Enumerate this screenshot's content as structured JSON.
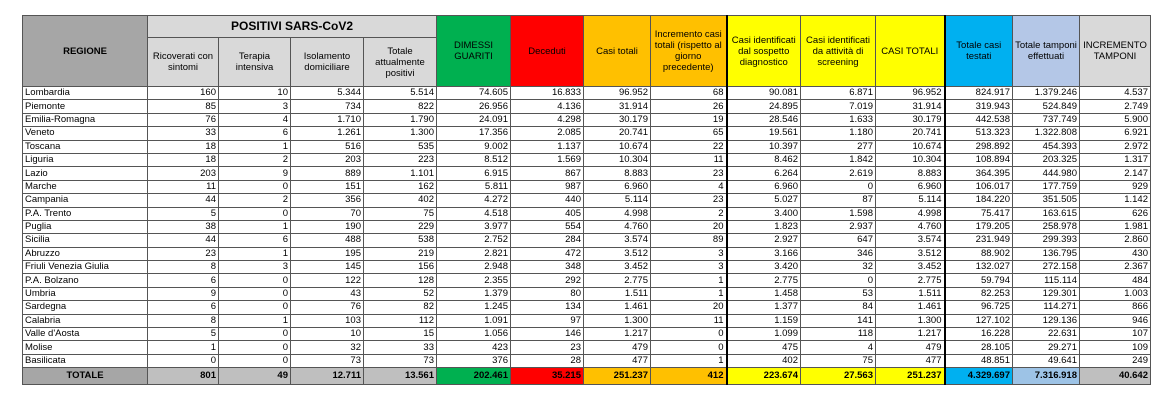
{
  "header": {
    "regione": "REGIONE",
    "positivi_group": "POSITIVI SARS-CoV2",
    "columns": [
      "Ricoverati con sintomi",
      "Terapia intensiva",
      "Isolamento domiciliare",
      "Totale attualmente positivi",
      "DIMESSI GUARITI",
      "Deceduti",
      "Casi totali",
      "Incremento casi totali (rispetto al giorno precedente)",
      "Casi identificati dal sospetto diagnostico",
      "Casi identificati da attività di screening",
      "CASI TOTALI",
      "Totale casi testati",
      "Totale tamponi effettuati",
      "INCREMENTO TAMPONI"
    ]
  },
  "colors": {
    "header_grey": "#d9d9d9",
    "regione_grey": "#a6a6a6",
    "dimessi": "#00b050",
    "deceduti": "#ff0000",
    "casi_totali": "#ffc000",
    "screening": "#ffff00",
    "testati": "#00b0f0",
    "tamponi_header": "#b4c7e7",
    "tamponi_total": "#9dc3e6",
    "incremento_tamponi_total": "#bfbfbf"
  },
  "rows": [
    {
      "regione": "Lombardia",
      "values": [
        "160",
        "10",
        "5.344",
        "5.514",
        "74.605",
        "16.833",
        "96.952",
        "68",
        "90.081",
        "6.871",
        "96.952",
        "824.917",
        "1.379.246",
        "4.537"
      ]
    },
    {
      "regione": "Piemonte",
      "values": [
        "85",
        "3",
        "734",
        "822",
        "26.956",
        "4.136",
        "31.914",
        "26",
        "24.895",
        "7.019",
        "31.914",
        "319.943",
        "524.849",
        "2.749"
      ]
    },
    {
      "regione": "Emilia-Romagna",
      "values": [
        "76",
        "4",
        "1.710",
        "1.790",
        "24.091",
        "4.298",
        "30.179",
        "19",
        "28.546",
        "1.633",
        "30.179",
        "442.538",
        "737.749",
        "5.900"
      ]
    },
    {
      "regione": "Veneto",
      "values": [
        "33",
        "6",
        "1.261",
        "1.300",
        "17.356",
        "2.085",
        "20.741",
        "65",
        "19.561",
        "1.180",
        "20.741",
        "513.323",
        "1.322.808",
        "6.921"
      ]
    },
    {
      "regione": "Toscana",
      "values": [
        "18",
        "1",
        "516",
        "535",
        "9.002",
        "1.137",
        "10.674",
        "22",
        "10.397",
        "277",
        "10.674",
        "298.892",
        "454.393",
        "2.972"
      ]
    },
    {
      "regione": "Liguria",
      "values": [
        "18",
        "2",
        "203",
        "223",
        "8.512",
        "1.569",
        "10.304",
        "11",
        "8.462",
        "1.842",
        "10.304",
        "108.894",
        "203.325",
        "1.317"
      ]
    },
    {
      "regione": "Lazio",
      "values": [
        "203",
        "9",
        "889",
        "1.101",
        "6.915",
        "867",
        "8.883",
        "23",
        "6.264",
        "2.619",
        "8.883",
        "364.395",
        "444.980",
        "2.147"
      ]
    },
    {
      "regione": "Marche",
      "values": [
        "11",
        "0",
        "151",
        "162",
        "5.811",
        "987",
        "6.960",
        "4",
        "6.960",
        "0",
        "6.960",
        "106.017",
        "177.759",
        "929"
      ]
    },
    {
      "regione": "Campania",
      "values": [
        "44",
        "2",
        "356",
        "402",
        "4.272",
        "440",
        "5.114",
        "23",
        "5.027",
        "87",
        "5.114",
        "184.220",
        "351.505",
        "1.142"
      ]
    },
    {
      "regione": "P.A. Trento",
      "values": [
        "5",
        "0",
        "70",
        "75",
        "4.518",
        "405",
        "4.998",
        "2",
        "3.400",
        "1.598",
        "4.998",
        "75.417",
        "163.615",
        "626"
      ]
    },
    {
      "regione": "Puglia",
      "values": [
        "38",
        "1",
        "190",
        "229",
        "3.977",
        "554",
        "4.760",
        "20",
        "1.823",
        "2.937",
        "4.760",
        "179.205",
        "258.978",
        "1.981"
      ]
    },
    {
      "regione": "Sicilia",
      "values": [
        "44",
        "6",
        "488",
        "538",
        "2.752",
        "284",
        "3.574",
        "89",
        "2.927",
        "647",
        "3.574",
        "231.949",
        "299.393",
        "2.860"
      ]
    },
    {
      "regione": "Abruzzo",
      "values": [
        "23",
        "1",
        "195",
        "219",
        "2.821",
        "472",
        "3.512",
        "3",
        "3.166",
        "346",
        "3.512",
        "88.902",
        "136.795",
        "430"
      ]
    },
    {
      "regione": "Friuli Venezia Giulia",
      "values": [
        "8",
        "3",
        "145",
        "156",
        "2.948",
        "348",
        "3.452",
        "3",
        "3.420",
        "32",
        "3.452",
        "132.027",
        "272.158",
        "2.367"
      ]
    },
    {
      "regione": "P.A. Bolzano",
      "values": [
        "6",
        "0",
        "122",
        "128",
        "2.355",
        "292",
        "2.775",
        "1",
        "2.775",
        "0",
        "2.775",
        "59.794",
        "115.114",
        "484"
      ]
    },
    {
      "regione": "Umbria",
      "values": [
        "9",
        "0",
        "43",
        "52",
        "1.379",
        "80",
        "1.511",
        "1",
        "1.458",
        "53",
        "1.511",
        "82.253",
        "129.301",
        "1.003"
      ]
    },
    {
      "regione": "Sardegna",
      "values": [
        "6",
        "0",
        "76",
        "82",
        "1.245",
        "134",
        "1.461",
        "20",
        "1.377",
        "84",
        "1.461",
        "96.725",
        "114.271",
        "866"
      ]
    },
    {
      "regione": "Calabria",
      "values": [
        "8",
        "1",
        "103",
        "112",
        "1.091",
        "97",
        "1.300",
        "11",
        "1.159",
        "141",
        "1.300",
        "127.102",
        "129.136",
        "946"
      ]
    },
    {
      "regione": "Valle d'Aosta",
      "values": [
        "5",
        "0",
        "10",
        "15",
        "1.056",
        "146",
        "1.217",
        "0",
        "1.099",
        "118",
        "1.217",
        "16.228",
        "22.631",
        "107"
      ]
    },
    {
      "regione": "Molise",
      "values": [
        "1",
        "0",
        "32",
        "33",
        "423",
        "23",
        "479",
        "0",
        "475",
        "4",
        "479",
        "28.105",
        "29.271",
        "109"
      ]
    },
    {
      "regione": "Basilicata",
      "values": [
        "0",
        "0",
        "73",
        "73",
        "376",
        "28",
        "477",
        "1",
        "402",
        "75",
        "477",
        "48.851",
        "49.641",
        "249"
      ]
    }
  ],
  "totale": {
    "label": "TOTALE",
    "values": [
      "801",
      "49",
      "12.711",
      "13.561",
      "202.461",
      "35.215",
      "251.237",
      "412",
      "223.674",
      "27.563",
      "251.237",
      "4.329.697",
      "7.316.918",
      "40.642"
    ]
  }
}
